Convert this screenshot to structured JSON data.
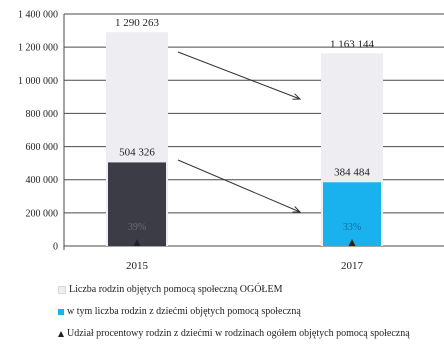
{
  "chart_data": {
    "type": "bar",
    "categories": [
      "2015",
      "2017"
    ],
    "series": [
      {
        "name": "Liczba rodzin objętych pomocą społeczną OGÓŁEM",
        "values": [
          1290263,
          1163144
        ],
        "color": "#eeedf2",
        "labels": [
          "1 290 263",
          "1 163 144"
        ]
      },
      {
        "name": "w tym liczba rodzin z dziećmi objętych pomocą społeczną",
        "values": [
          504326,
          384484
        ],
        "colors": [
          "#3c3c46",
          "#1ab2ee"
        ],
        "labels": [
          "504 326",
          "384 484"
        ]
      },
      {
        "name": "Udział procentowy rodzin z dziećmi w rodzinach ogółem objętych pomocą społeczną",
        "values": [
          39,
          33
        ],
        "labels": [
          "39%",
          "33%"
        ]
      }
    ],
    "yticks": [
      "1 400 000",
      "1 200 000",
      "1 000 000",
      "800 000",
      "600 000",
      "400 000",
      "200 000",
      "0"
    ],
    "ylim": [
      0,
      1400000
    ],
    "grid": true
  },
  "legend": {
    "item1": "Liczba rodzin objętych pomocą społeczną OGÓŁEM",
    "item2": "w tym liczba rodzin z dziećmi objętych pomocą społeczną",
    "item3": "Udział procentowy rodzin z dziećmi w rodzinach ogółem objętych pomocą społeczną"
  },
  "colors": {
    "total": "#eeedf2",
    "dark": "#3c3c46",
    "blue": "#1ab2ee",
    "marker": "#222222"
  }
}
